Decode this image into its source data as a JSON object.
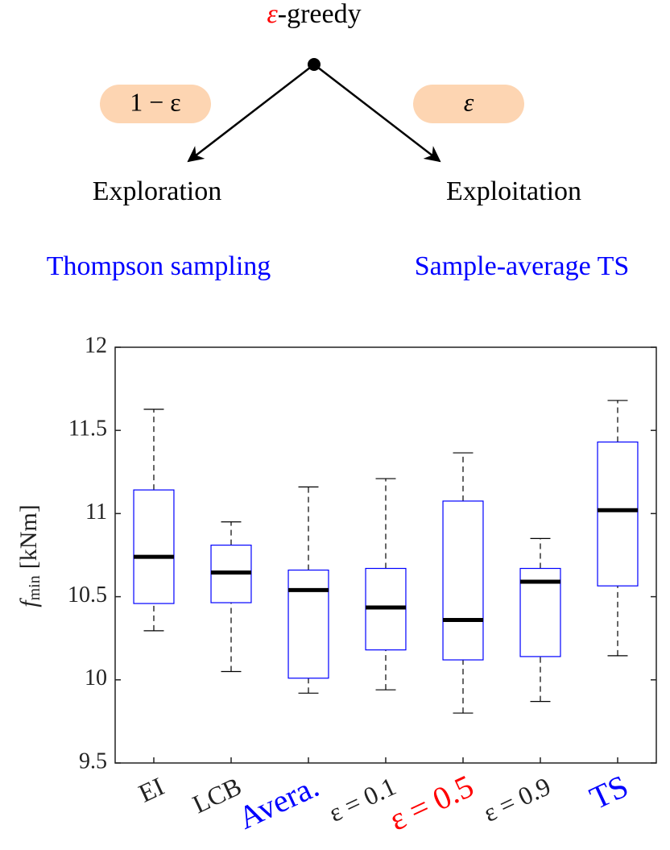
{
  "diagram": {
    "root_symbol": "ε",
    "root_text": "-greedy",
    "left_weight": "1 − ε",
    "right_weight": "ε",
    "left_node": "Exploration",
    "right_node": "Exploitation",
    "left_method": "Thompson sampling",
    "right_method": "Sample-average TS"
  },
  "chart_data": {
    "type": "box",
    "ylabel": "f",
    "ylabel_sub": "min",
    "ylabel_unit": "[kNm]",
    "categories": [
      "EI",
      "LCB",
      "Avera.",
      "ε = 0.1",
      "ε = 0.5",
      "ε = 0.9",
      "TS"
    ],
    "category_colors": [
      "#222222",
      "#222222",
      "#0000ff",
      "#222222",
      "#ff0000",
      "#222222",
      "#0000ff"
    ],
    "min": [
      10.295,
      10.05,
      9.92,
      9.94,
      9.8,
      9.87,
      10.145
    ],
    "q1": [
      10.459,
      10.464,
      10.01,
      10.18,
      10.12,
      10.14,
      10.565
    ],
    "median": [
      10.74,
      10.645,
      10.54,
      10.435,
      10.36,
      10.59,
      11.02
    ],
    "q3": [
      11.142,
      10.81,
      10.66,
      10.67,
      11.075,
      10.67,
      11.43
    ],
    "max": [
      11.627,
      10.95,
      11.16,
      11.21,
      11.365,
      10.85,
      11.68
    ],
    "box_color": "#0000ff",
    "whisker_color": "#000000",
    "median_color": "#000000",
    "ylim": [
      9.5,
      12
    ],
    "yticks": [
      9.5,
      10,
      10.5,
      11,
      11.5,
      12
    ],
    "grid": false
  }
}
